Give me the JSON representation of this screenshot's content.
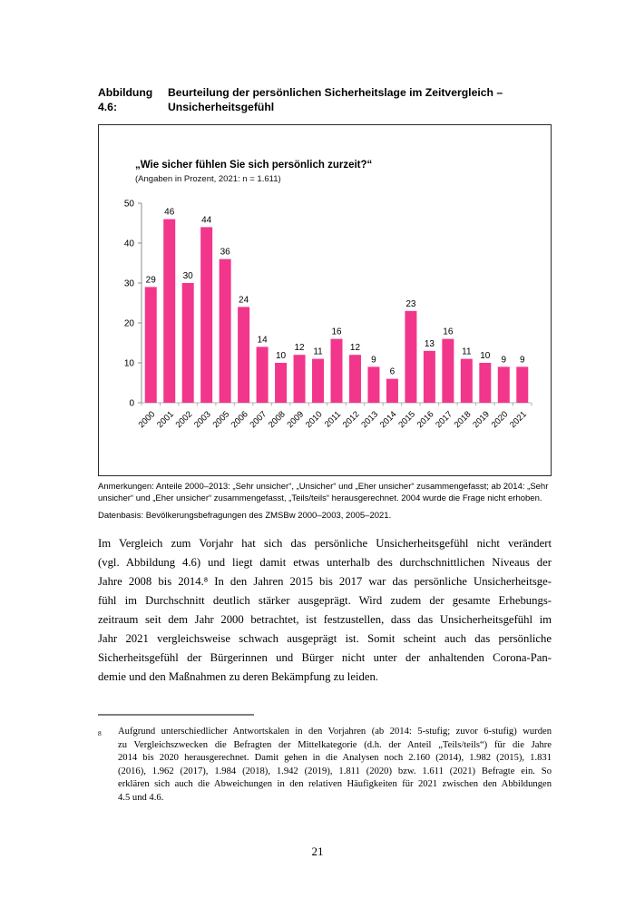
{
  "page": {
    "number": "21"
  },
  "figure": {
    "label": "Abbildung 4.6:",
    "title_lines": [
      "Beurteilung der persönlichen Sicherheitslage im Zeitvergleich –",
      "Unsicherheitsgefühl"
    ]
  },
  "chart_data": {
    "type": "bar",
    "title": "„Wie sicher fühlen Sie sich persönlich zurzeit?“",
    "subtitle": "(Angaben in Prozent, 2021: n = 1.611)",
    "categories": [
      "2000",
      "2001",
      "2002",
      "2003",
      "2005",
      "2006",
      "2007",
      "2008",
      "2009",
      "2010",
      "2011",
      "2012",
      "2013",
      "2014",
      "2015",
      "2016",
      "2017",
      "2018",
      "2019",
      "2020",
      "2021"
    ],
    "values": [
      29,
      46,
      30,
      44,
      36,
      24,
      14,
      10,
      12,
      11,
      16,
      12,
      9,
      6,
      23,
      13,
      16,
      11,
      10,
      9,
      9
    ],
    "xlabel": "",
    "ylabel": "",
    "ylim": [
      0,
      50
    ],
    "yticks": [
      0,
      10,
      20,
      30,
      40,
      50
    ],
    "grid": false,
    "legend": false,
    "data_labels": true,
    "bar_color": "#F2368C",
    "y_axis_color": "#8c8c8c",
    "x_axis_color": "#b3b3b3"
  },
  "notes": {
    "anmerkungen_lines": [
      "Anmerkungen: Anteile 2000–2013: „Sehr unsicher“, „Unsicher“ und „Eher unsicher“ zusammengefasst; ab 2014: „Sehr",
      "unsicher“ und „Eher unsicher“ zusammengefasst, „Teils/teils“ herausgerechnet. 2004 wurde die Frage nicht erhoben."
    ],
    "datenbasis": "Datenbasis: Bevölkerungsbefragungen des ZMSBw 2000–2003, 2005–2021."
  },
  "body": {
    "lines": [
      "Im Vergleich zum Vorjahr hat sich das persönliche Unsicherheitsgefühl nicht verändert",
      "(vgl. Abbildung 4.6) und liegt damit etwas unterhalb des durchschnittlichen Niveaus der",
      "Jahre 2008 bis 2014.⁸ In den Jahren 2015 bis 2017 war das persönliche Unsicherheitsge-",
      "fühl im Durchschnitt deutlich stärker ausgeprägt. Wird zudem der gesamte Erhebungs-",
      "zeitraum seit dem Jahr 2000 betrachtet, ist festzustellen, dass das Unsicherheitsgefühl im",
      "Jahr 2021 vergleichsweise schwach ausgeprägt ist. Somit scheint auch das persönliche",
      "Sicherheitsgefühl der Bürgerinnen und Bürger nicht unter der anhaltenden Corona-Pan-",
      "demie und den Maßnahmen zu deren Bekämpfung zu leiden."
    ]
  },
  "footnote": {
    "marker": "8",
    "lines": [
      "Aufgrund unterschiedlicher Antwortskalen in den Vorjahren (ab 2014: 5-stufig; zuvor 6-stufig) wurden",
      "zu Vergleichszwecken die Befragten der Mittelkategorie (d.h. der Anteil „Teils/teils“) für die Jahre",
      "2014 bis 2020 herausgerechnet. Damit gehen in die Analysen noch 2.160 (2014), 1.982 (2015), 1.831",
      "(2016), 1.962 (2017), 1.984 (2018), 1.942 (2019), 1.811 (2020) bzw. 1.611 (2021) Befragte ein. So",
      "erklären sich auch die Abweichungen in den relativen Häufigkeiten für 2021 zwischen den Abbildungen",
      "4.5 und 4.6."
    ]
  }
}
